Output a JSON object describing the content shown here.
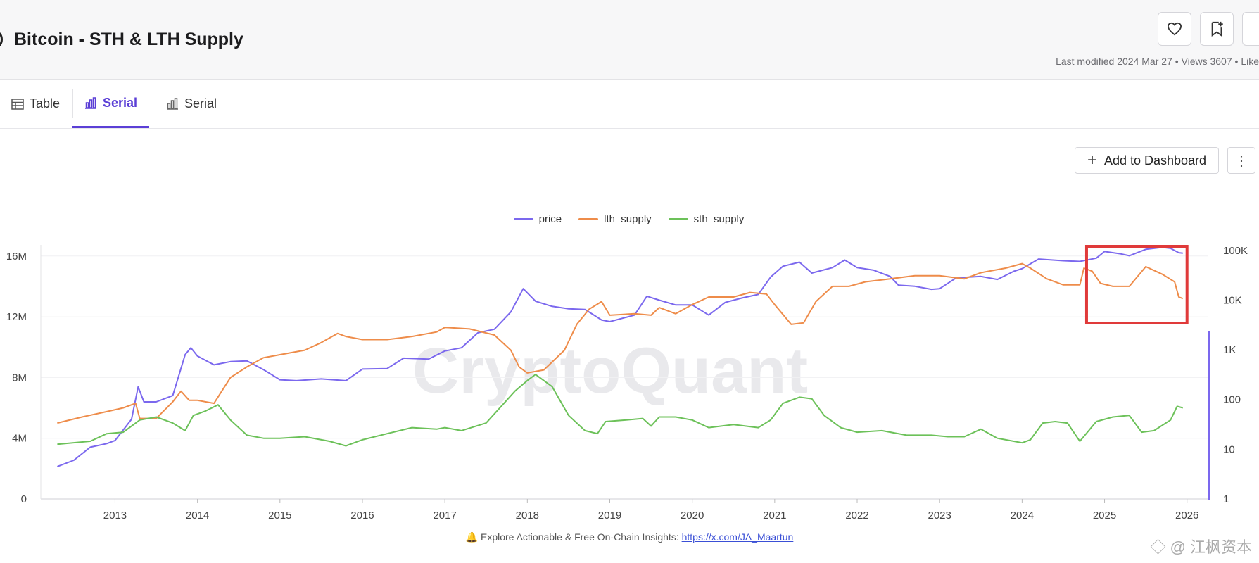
{
  "header": {
    "title": "Bitcoin - STH & LTH Supply",
    "meta": "Last modified 2024 Mar 27 • Views 3607 • Like"
  },
  "tabs": [
    {
      "label": "Table",
      "icon": "table-icon"
    },
    {
      "label": "Serial",
      "icon": "bar-chart-icon"
    },
    {
      "label": "Serial",
      "icon": "bar-chart-icon"
    }
  ],
  "toolbar": {
    "add_dashboard_label": "Add to Dashboard",
    "more_label": "⋮"
  },
  "footer": {
    "text": "🔔 Explore Actionable & Free On-Chain Insights: ",
    "link": "https://x.com/JA_Maartun"
  },
  "corner_watermark": "◇ @ 江枫资本",
  "chart_data": {
    "type": "line",
    "watermark": "CryptoQuant",
    "legend_position": "top-center",
    "grid": true,
    "x_ticks": [
      "2013",
      "2014",
      "2015",
      "2016",
      "2017",
      "2018",
      "2019",
      "2020",
      "2021",
      "2022",
      "2023",
      "2024",
      "2025",
      "2026"
    ],
    "y_left": {
      "ticks": [
        "0",
        "4M",
        "8M",
        "12M",
        "16M"
      ],
      "values": [
        0,
        4000000,
        8000000,
        12000000,
        16000000
      ],
      "range": [
        0,
        16500000
      ]
    },
    "y_right": {
      "scale": "log",
      "ticks": [
        "1",
        "10",
        "100",
        "1K",
        "10K",
        "100K"
      ],
      "values": [
        1,
        10,
        100,
        1000,
        10000,
        100000
      ]
    },
    "series": [
      {
        "name": "price",
        "color": "#7b68ee",
        "axis": "right",
        "points": [
          [
            2012.3,
            4.5
          ],
          [
            2012.5,
            6
          ],
          [
            2012.7,
            11
          ],
          [
            2012.9,
            13
          ],
          [
            2013.0,
            15
          ],
          [
            2013.2,
            40
          ],
          [
            2013.28,
            180
          ],
          [
            2013.35,
            90
          ],
          [
            2013.5,
            90
          ],
          [
            2013.7,
            120
          ],
          [
            2013.85,
            800
          ],
          [
            2013.92,
            1100
          ],
          [
            2014.0,
            750
          ],
          [
            2014.2,
            500
          ],
          [
            2014.4,
            580
          ],
          [
            2014.6,
            600
          ],
          [
            2014.8,
            400
          ],
          [
            2015.0,
            250
          ],
          [
            2015.2,
            240
          ],
          [
            2015.5,
            260
          ],
          [
            2015.8,
            240
          ],
          [
            2016.0,
            410
          ],
          [
            2016.3,
            420
          ],
          [
            2016.5,
            680
          ],
          [
            2016.8,
            650
          ],
          [
            2017.0,
            950
          ],
          [
            2017.2,
            1100
          ],
          [
            2017.4,
            2200
          ],
          [
            2017.6,
            2600
          ],
          [
            2017.8,
            5800
          ],
          [
            2017.95,
            17000
          ],
          [
            2018.1,
            9500
          ],
          [
            2018.3,
            7500
          ],
          [
            2018.5,
            6700
          ],
          [
            2018.7,
            6500
          ],
          [
            2018.9,
            4000
          ],
          [
            2019.0,
            3700
          ],
          [
            2019.3,
            5000
          ],
          [
            2019.45,
            12000
          ],
          [
            2019.6,
            10000
          ],
          [
            2019.8,
            8000
          ],
          [
            2020.0,
            8000
          ],
          [
            2020.2,
            5000
          ],
          [
            2020.4,
            9000
          ],
          [
            2020.6,
            11000
          ],
          [
            2020.8,
            13000
          ],
          [
            2020.95,
            29000
          ],
          [
            2021.1,
            48000
          ],
          [
            2021.3,
            58000
          ],
          [
            2021.45,
            35000
          ],
          [
            2021.7,
            45000
          ],
          [
            2021.85,
            64000
          ],
          [
            2022.0,
            45000
          ],
          [
            2022.2,
            40000
          ],
          [
            2022.4,
            30000
          ],
          [
            2022.5,
            20000
          ],
          [
            2022.7,
            19000
          ],
          [
            2022.9,
            16500
          ],
          [
            2023.0,
            17000
          ],
          [
            2023.2,
            28000
          ],
          [
            2023.5,
            30000
          ],
          [
            2023.7,
            26000
          ],
          [
            2023.9,
            38000
          ],
          [
            2024.0,
            43000
          ],
          [
            2024.2,
            67000
          ],
          [
            2024.5,
            62000
          ],
          [
            2024.7,
            60000
          ],
          [
            2024.9,
            70000
          ],
          [
            2025.0,
            95000
          ],
          [
            2025.2,
            85000
          ],
          [
            2025.3,
            78000
          ],
          [
            2025.5,
            105000
          ],
          [
            2025.7,
            115000
          ],
          [
            2025.8,
            110000
          ],
          [
            2025.9,
            90000
          ],
          [
            2025.95,
            88000
          ]
        ]
      },
      {
        "name": "lth_supply",
        "color": "#ee8c4a",
        "axis": "left",
        "points": [
          [
            2012.3,
            5000000
          ],
          [
            2012.6,
            5400000
          ],
          [
            2012.9,
            5750000
          ],
          [
            2013.1,
            6000000
          ],
          [
            2013.25,
            6300000
          ],
          [
            2013.3,
            5300000
          ],
          [
            2013.5,
            5300000
          ],
          [
            2013.7,
            6400000
          ],
          [
            2013.8,
            7100000
          ],
          [
            2013.9,
            6500000
          ],
          [
            2014.0,
            6500000
          ],
          [
            2014.2,
            6300000
          ],
          [
            2014.4,
            8000000
          ],
          [
            2014.6,
            8700000
          ],
          [
            2014.8,
            9300000
          ],
          [
            2015.0,
            9500000
          ],
          [
            2015.3,
            9800000
          ],
          [
            2015.5,
            10300000
          ],
          [
            2015.7,
            10900000
          ],
          [
            2015.8,
            10700000
          ],
          [
            2016.0,
            10500000
          ],
          [
            2016.3,
            10500000
          ],
          [
            2016.6,
            10700000
          ],
          [
            2016.9,
            11000000
          ],
          [
            2017.0,
            11300000
          ],
          [
            2017.3,
            11200000
          ],
          [
            2017.6,
            10800000
          ],
          [
            2017.8,
            9800000
          ],
          [
            2017.9,
            8700000
          ],
          [
            2018.0,
            8300000
          ],
          [
            2018.2,
            8500000
          ],
          [
            2018.45,
            9800000
          ],
          [
            2018.6,
            11500000
          ],
          [
            2018.75,
            12500000
          ],
          [
            2018.9,
            13000000
          ],
          [
            2019.0,
            12100000
          ],
          [
            2019.3,
            12200000
          ],
          [
            2019.5,
            12100000
          ],
          [
            2019.6,
            12600000
          ],
          [
            2019.8,
            12200000
          ],
          [
            2020.0,
            12800000
          ],
          [
            2020.2,
            13300000
          ],
          [
            2020.5,
            13300000
          ],
          [
            2020.7,
            13600000
          ],
          [
            2020.9,
            13500000
          ],
          [
            2021.0,
            12800000
          ],
          [
            2021.2,
            11500000
          ],
          [
            2021.35,
            11600000
          ],
          [
            2021.5,
            13000000
          ],
          [
            2021.7,
            14000000
          ],
          [
            2021.9,
            14000000
          ],
          [
            2022.1,
            14300000
          ],
          [
            2022.4,
            14500000
          ],
          [
            2022.7,
            14700000
          ],
          [
            2023.0,
            14700000
          ],
          [
            2023.3,
            14500000
          ],
          [
            2023.5,
            14900000
          ],
          [
            2023.8,
            15200000
          ],
          [
            2024.0,
            15500000
          ],
          [
            2024.1,
            15200000
          ],
          [
            2024.3,
            14500000
          ],
          [
            2024.5,
            14100000
          ],
          [
            2024.7,
            14100000
          ],
          [
            2024.75,
            15200000
          ],
          [
            2024.85,
            15000000
          ],
          [
            2024.95,
            14200000
          ],
          [
            2025.1,
            14000000
          ],
          [
            2025.3,
            14000000
          ],
          [
            2025.5,
            15300000
          ],
          [
            2025.7,
            14800000
          ],
          [
            2025.85,
            14300000
          ],
          [
            2025.9,
            13300000
          ],
          [
            2025.95,
            13200000
          ]
        ]
      },
      {
        "name": "sth_supply",
        "color": "#6cc159",
        "axis": "left",
        "points": [
          [
            2012.3,
            3600000
          ],
          [
            2012.7,
            3800000
          ],
          [
            2012.9,
            4300000
          ],
          [
            2013.1,
            4400000
          ],
          [
            2013.3,
            5200000
          ],
          [
            2013.5,
            5400000
          ],
          [
            2013.7,
            5000000
          ],
          [
            2013.85,
            4500000
          ],
          [
            2013.95,
            5500000
          ],
          [
            2014.1,
            5800000
          ],
          [
            2014.25,
            6200000
          ],
          [
            2014.4,
            5200000
          ],
          [
            2014.6,
            4200000
          ],
          [
            2014.8,
            4000000
          ],
          [
            2015.0,
            4000000
          ],
          [
            2015.3,
            4100000
          ],
          [
            2015.6,
            3800000
          ],
          [
            2015.8,
            3500000
          ],
          [
            2016.0,
            3900000
          ],
          [
            2016.3,
            4300000
          ],
          [
            2016.6,
            4700000
          ],
          [
            2016.9,
            4600000
          ],
          [
            2017.0,
            4700000
          ],
          [
            2017.2,
            4500000
          ],
          [
            2017.5,
            5000000
          ],
          [
            2017.7,
            6200000
          ],
          [
            2017.85,
            7100000
          ],
          [
            2018.0,
            7800000
          ],
          [
            2018.1,
            8200000
          ],
          [
            2018.3,
            7400000
          ],
          [
            2018.5,
            5500000
          ],
          [
            2018.7,
            4500000
          ],
          [
            2018.85,
            4300000
          ],
          [
            2018.95,
            5100000
          ],
          [
            2019.2,
            5200000
          ],
          [
            2019.4,
            5300000
          ],
          [
            2019.5,
            4800000
          ],
          [
            2019.6,
            5400000
          ],
          [
            2019.8,
            5400000
          ],
          [
            2020.0,
            5200000
          ],
          [
            2020.2,
            4700000
          ],
          [
            2020.5,
            4900000
          ],
          [
            2020.8,
            4700000
          ],
          [
            2020.95,
            5200000
          ],
          [
            2021.1,
            6300000
          ],
          [
            2021.3,
            6700000
          ],
          [
            2021.45,
            6600000
          ],
          [
            2021.6,
            5500000
          ],
          [
            2021.8,
            4700000
          ],
          [
            2022.0,
            4400000
          ],
          [
            2022.3,
            4500000
          ],
          [
            2022.6,
            4200000
          ],
          [
            2022.9,
            4200000
          ],
          [
            2023.1,
            4100000
          ],
          [
            2023.3,
            4100000
          ],
          [
            2023.5,
            4600000
          ],
          [
            2023.7,
            4000000
          ],
          [
            2023.9,
            3800000
          ],
          [
            2024.0,
            3700000
          ],
          [
            2024.1,
            3900000
          ],
          [
            2024.25,
            5000000
          ],
          [
            2024.4,
            5100000
          ],
          [
            2024.55,
            5000000
          ],
          [
            2024.7,
            3800000
          ],
          [
            2024.9,
            5100000
          ],
          [
            2025.1,
            5400000
          ],
          [
            2025.3,
            5500000
          ],
          [
            2025.45,
            4400000
          ],
          [
            2025.6,
            4500000
          ],
          [
            2025.8,
            5200000
          ],
          [
            2025.88,
            6100000
          ],
          [
            2025.95,
            6000000
          ]
        ]
      }
    ],
    "highlight_box": {
      "x_from": 2024.85,
      "x_to": 2026.0,
      "color": "#e03a3a"
    }
  }
}
